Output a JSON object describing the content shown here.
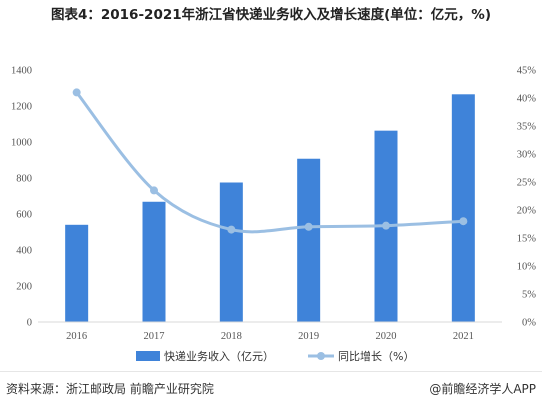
{
  "title": "图表4：2016-2021年浙江省快递业务收入及增长速度(单位：亿元，%)",
  "source": "资料来源：浙江邮政局 前瞻产业研究院",
  "brand": "@前瞻经济学人APP",
  "colors": {
    "bar": "#3f83d9",
    "line": "#9bbfe3"
  },
  "chart_data": {
    "type": "bar",
    "categories": [
      "2016",
      "2017",
      "2018",
      "2019",
      "2020",
      "2021"
    ],
    "series": [
      {
        "name": "快递业务收入（亿元）",
        "type": "bar",
        "axis": "left",
        "values": [
          540,
          668,
          775,
          907,
          1063,
          1265
        ]
      },
      {
        "name": "同比增长（%）",
        "type": "line",
        "axis": "right",
        "values": [
          41,
          23.5,
          16.5,
          17,
          17.2,
          18
        ]
      }
    ],
    "ylim_left": [
      0,
      1400
    ],
    "ylim_right": [
      0,
      45
    ],
    "yticks_left": [
      "0",
      "200",
      "400",
      "600",
      "800",
      "1000",
      "1200",
      "1400"
    ],
    "yticks_right": [
      "0%",
      "5%",
      "10%",
      "15%",
      "20%",
      "25%",
      "30%",
      "35%",
      "40%",
      "45%"
    ],
    "legend_position": "bottom",
    "grid": false
  }
}
